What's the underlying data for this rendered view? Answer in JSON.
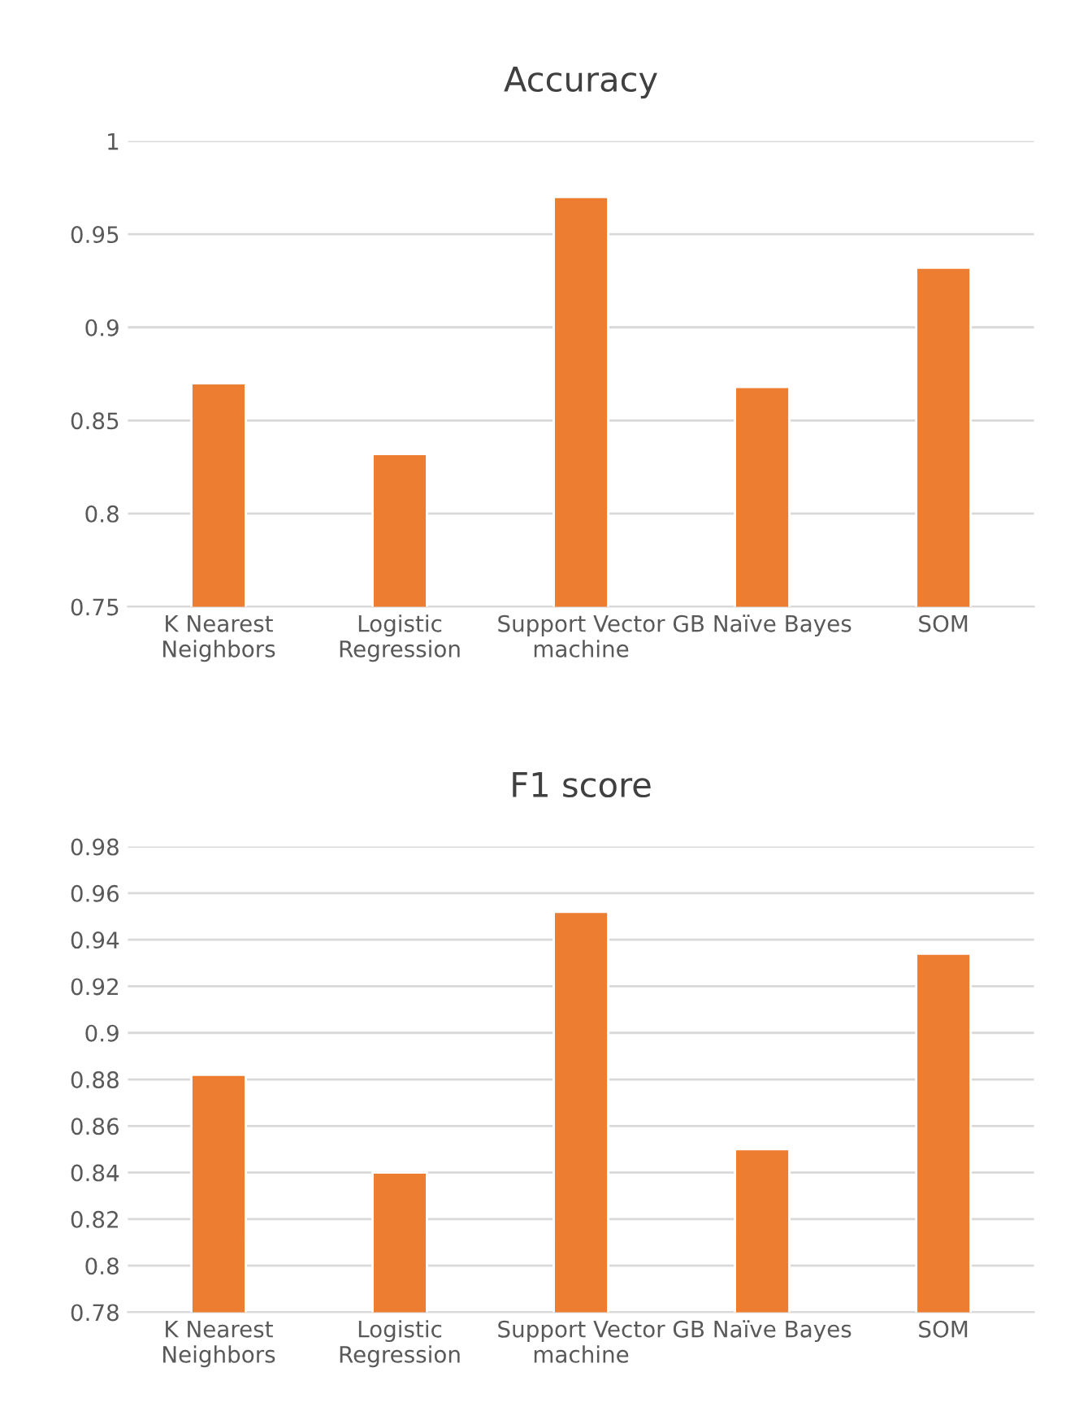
{
  "chart_data": [
    {
      "type": "bar",
      "title": "Accuracy",
      "categories": [
        "K Nearest\nNeighbors",
        "Logistic\nRegression",
        "Support Vector\nmachine",
        "GB Naïve Bayes",
        "SOM"
      ],
      "series": [
        {
          "color": "#ed7d31",
          "values": [
            0.87,
            0.832,
            0.97,
            0.868,
            0.932
          ]
        }
      ],
      "ylim": [
        0.75,
        1
      ],
      "yticks": [
        {
          "value": 0.75,
          "label": "0.75"
        },
        {
          "value": 0.8,
          "label": "0.8"
        },
        {
          "value": 0.85,
          "label": "0.85"
        },
        {
          "value": 0.9,
          "label": "0.9"
        },
        {
          "value": 0.95,
          "label": "0.95"
        },
        {
          "value": 1,
          "label": "1"
        }
      ],
      "grid": "y",
      "legend": false
    },
    {
      "type": "bar",
      "title": "F1 score",
      "categories": [
        "K Nearest\nNeighbors",
        "Logistic\nRegression",
        "Support Vector\nmachine",
        "GB Naïve Bayes",
        "SOM"
      ],
      "series": [
        {
          "color": "#ed7d31",
          "values": [
            0.882,
            0.84,
            0.952,
            0.85,
            0.934
          ]
        }
      ],
      "ylim": [
        0.78,
        0.98
      ],
      "yticks": [
        {
          "value": 0.78,
          "label": "0.78"
        },
        {
          "value": 0.8,
          "label": "0.8"
        },
        {
          "value": 0.82,
          "label": "0.82"
        },
        {
          "value": 0.84,
          "label": "0.84"
        },
        {
          "value": 0.86,
          "label": "0.86"
        },
        {
          "value": 0.88,
          "label": "0.88"
        },
        {
          "value": 0.9,
          "label": "0.9"
        },
        {
          "value": 0.92,
          "label": "0.92"
        },
        {
          "value": 0.94,
          "label": "0.94"
        },
        {
          "value": 0.96,
          "label": "0.96"
        },
        {
          "value": 0.98,
          "label": "0.98"
        }
      ],
      "grid": "y",
      "legend": false
    }
  ]
}
